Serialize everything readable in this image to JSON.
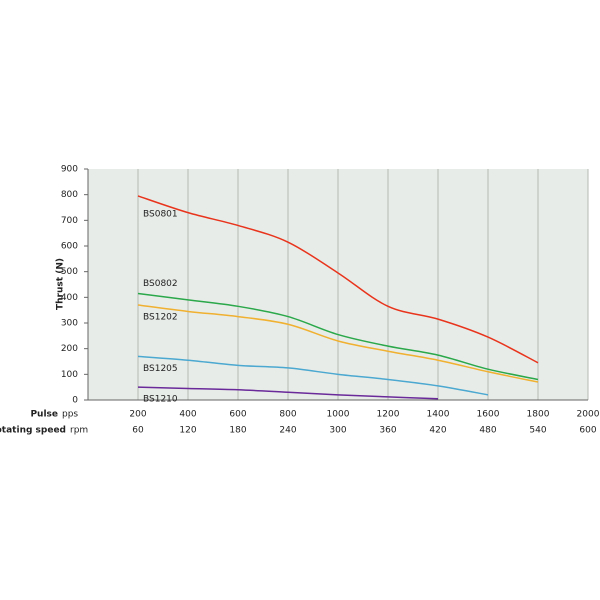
{
  "chart_data": {
    "type": "line",
    "y_label": "Thrust (N)",
    "x_label": "Pulse",
    "x_unit": "pps",
    "x2_label": "Rotating speed",
    "x2_unit": "rpm",
    "x": [
      200,
      400,
      600,
      800,
      1000,
      1200,
      1400,
      1600,
      1800
    ],
    "xlim": [
      0,
      2000
    ],
    "xticks": [
      200,
      400,
      600,
      800,
      1000,
      1200,
      1400,
      1600,
      1800,
      2000
    ],
    "x2ticks": [
      60,
      120,
      180,
      240,
      300,
      360,
      420,
      480,
      540,
      600
    ],
    "ylim": [
      0,
      900
    ],
    "yticks": [
      0,
      100,
      200,
      300,
      400,
      500,
      600,
      700,
      800,
      900
    ],
    "grid": true,
    "series": [
      {
        "name": "BS0801",
        "color": "#e8341c",
        "values": [
          795,
          730,
          680,
          615,
          495,
          365,
          315,
          245,
          145
        ]
      },
      {
        "name": "BS0802",
        "color": "#2aa84a",
        "values": [
          415,
          390,
          365,
          325,
          255,
          210,
          175,
          120,
          80
        ]
      },
      {
        "name": "BS1202",
        "color": "#f0b030",
        "values": [
          370,
          345,
          325,
          295,
          230,
          190,
          155,
          110,
          70
        ]
      },
      {
        "name": "BS1205",
        "color": "#4ba8d0",
        "values": [
          170,
          155,
          135,
          125,
          100,
          80,
          55,
          20,
          null
        ]
      },
      {
        "name": "BS1210",
        "color": "#6a2a9a",
        "values": [
          50,
          45,
          40,
          30,
          20,
          12,
          5,
          null,
          null
        ]
      }
    ]
  }
}
